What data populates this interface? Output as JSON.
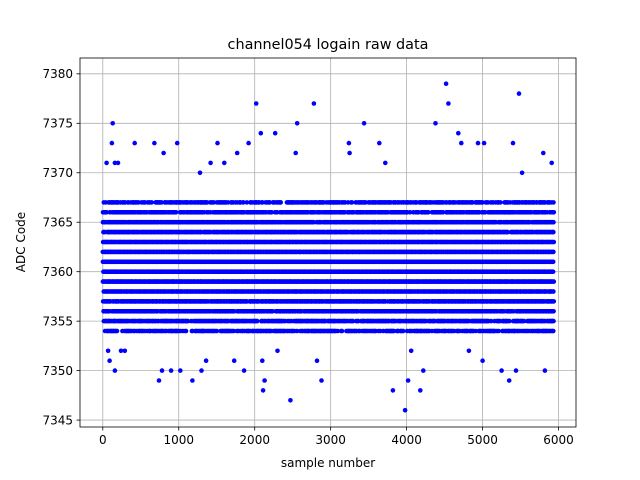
{
  "chart_data": {
    "type": "scatter",
    "title": "channel054 logain raw data",
    "xlabel": "sample number",
    "ylabel": "ADC Code",
    "xlim": [
      -300,
      6230
    ],
    "ylim": [
      7344.3,
      7381.6
    ],
    "xticks": [
      0,
      1000,
      2000,
      3000,
      4000,
      5000,
      6000
    ],
    "yticks": [
      7345,
      7350,
      7355,
      7360,
      7365,
      7370,
      7375,
      7380
    ],
    "grid": true,
    "legend": "none",
    "marker_color": "#0000ff",
    "series": [
      {
        "n_samples": 5940,
        "band": {
          "y_min": 7354,
          "y_max": 7367,
          "density": "dense"
        },
        "outliers": [
          {
            "x": 130,
            "y": 7375
          },
          {
            "x": 120,
            "y": 7373
          },
          {
            "x": 50,
            "y": 7371
          },
          {
            "x": 160,
            "y": 7371
          },
          {
            "x": 200,
            "y": 7371
          },
          {
            "x": 70,
            "y": 7352
          },
          {
            "x": 90,
            "y": 7351
          },
          {
            "x": 160,
            "y": 7350
          },
          {
            "x": 240,
            "y": 7352
          },
          {
            "x": 290,
            "y": 7352
          },
          {
            "x": 420,
            "y": 7373
          },
          {
            "x": 680,
            "y": 7373
          },
          {
            "x": 740,
            "y": 7349
          },
          {
            "x": 780,
            "y": 7350
          },
          {
            "x": 800,
            "y": 7372
          },
          {
            "x": 900,
            "y": 7350
          },
          {
            "x": 980,
            "y": 7373
          },
          {
            "x": 1020,
            "y": 7350
          },
          {
            "x": 1180,
            "y": 7349
          },
          {
            "x": 1280,
            "y": 7370
          },
          {
            "x": 1300,
            "y": 7350
          },
          {
            "x": 1360,
            "y": 7351
          },
          {
            "x": 1420,
            "y": 7371
          },
          {
            "x": 1510,
            "y": 7373
          },
          {
            "x": 1600,
            "y": 7371
          },
          {
            "x": 1730,
            "y": 7351
          },
          {
            "x": 1770,
            "y": 7372
          },
          {
            "x": 1860,
            "y": 7350
          },
          {
            "x": 1920,
            "y": 7373
          },
          {
            "x": 2020,
            "y": 7377
          },
          {
            "x": 2080,
            "y": 7374
          },
          {
            "x": 2110,
            "y": 7348
          },
          {
            "x": 2130,
            "y": 7349
          },
          {
            "x": 2100,
            "y": 7351
          },
          {
            "x": 2270,
            "y": 7374
          },
          {
            "x": 2300,
            "y": 7352
          },
          {
            "x": 2470,
            "y": 7347
          },
          {
            "x": 2560,
            "y": 7375
          },
          {
            "x": 2540,
            "y": 7372
          },
          {
            "x": 2780,
            "y": 7377
          },
          {
            "x": 2820,
            "y": 7351
          },
          {
            "x": 2880,
            "y": 7349
          },
          {
            "x": 3240,
            "y": 7373
          },
          {
            "x": 3250,
            "y": 7372
          },
          {
            "x": 3440,
            "y": 7375
          },
          {
            "x": 3640,
            "y": 7373
          },
          {
            "x": 3720,
            "y": 7371
          },
          {
            "x": 3820,
            "y": 7348
          },
          {
            "x": 3980,
            "y": 7346
          },
          {
            "x": 4020,
            "y": 7349
          },
          {
            "x": 4060,
            "y": 7352
          },
          {
            "x": 4180,
            "y": 7348
          },
          {
            "x": 4220,
            "y": 7350
          },
          {
            "x": 4380,
            "y": 7375
          },
          {
            "x": 4520,
            "y": 7379
          },
          {
            "x": 4550,
            "y": 7377
          },
          {
            "x": 4680,
            "y": 7374
          },
          {
            "x": 4720,
            "y": 7373
          },
          {
            "x": 4820,
            "y": 7352
          },
          {
            "x": 4940,
            "y": 7373
          },
          {
            "x": 5020,
            "y": 7373
          },
          {
            "x": 5000,
            "y": 7351
          },
          {
            "x": 5250,
            "y": 7350
          },
          {
            "x": 5350,
            "y": 7349
          },
          {
            "x": 5400,
            "y": 7373
          },
          {
            "x": 5440,
            "y": 7350
          },
          {
            "x": 5480,
            "y": 7378
          },
          {
            "x": 5520,
            "y": 7370
          },
          {
            "x": 5800,
            "y": 7372
          },
          {
            "x": 5820,
            "y": 7350
          },
          {
            "x": 5910,
            "y": 7371
          }
        ]
      }
    ]
  }
}
